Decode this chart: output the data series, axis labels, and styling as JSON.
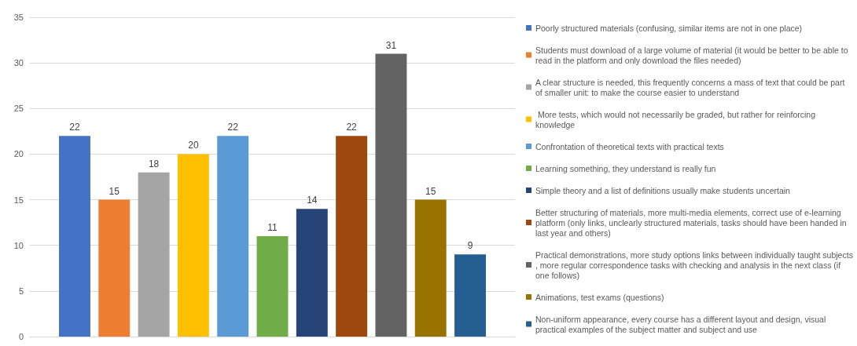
{
  "chart_data": {
    "type": "bar",
    "categories": [
      null
    ],
    "series": [
      {
        "name": "Poorly structured materials (confusing, similar items are not in one place)",
        "color": "#4472c4",
        "values": [
          22
        ]
      },
      {
        "name": "Students must download of a large volume of material (it would be better to be able to read in the platform and only download the files needed)",
        "color": "#ed7d31",
        "values": [
          15
        ]
      },
      {
        "name": "A clear structure is needed, this frequently concerns a mass of text that could be part of smaller unit: to make the course easier to understand",
        "color": "#a5a5a5",
        "values": [
          18
        ]
      },
      {
        "name": " More tests, which would not necessarily be graded, but rather for reinforcing knowledge",
        "color": "#ffc000",
        "values": [
          20
        ]
      },
      {
        "name": "Confrontation of theoretical texts with practical texts",
        "color": "#5b9bd5",
        "values": [
          22
        ]
      },
      {
        "name": "Learning something, they understand is really fun",
        "color": "#70ad47",
        "values": [
          11
        ]
      },
      {
        "name": "Simple theory and a list of definitions usually make students uncertain",
        "color": "#264478",
        "values": [
          14
        ]
      },
      {
        "name": "Better structuring of materials, more multi-media elements, correct use of e-learning platform (only links, unclearly structured materials, tasks should have been handed in last year and others)",
        "color": "#9e480e",
        "values": [
          22
        ]
      },
      {
        "name": "Practical demonstrations, more study options links between individually taught subjects, more regular correspondence tasks with checking and analysis in the next class (if one follows)",
        "color": "#636363",
        "values": [
          31
        ]
      },
      {
        "name": "Animations, test exams (questions)",
        "color": "#997300",
        "values": [
          15
        ]
      },
      {
        "name": "Non-uniform appearance, every course has a different layout and design, visual practical examples of the subject matter and subject and use",
        "color": "#255e91",
        "values": [
          9
        ]
      }
    ],
    "ylim": [
      0,
      35
    ],
    "yticks": [
      0,
      5,
      10,
      15,
      20,
      25,
      30,
      35
    ],
    "grid": "y",
    "legend": "right",
    "data_labels": true
  }
}
